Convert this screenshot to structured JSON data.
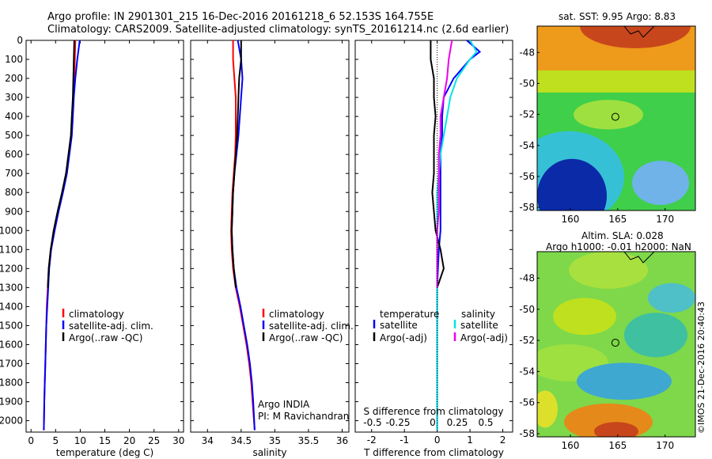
{
  "header": {
    "line1": "Argo profile: IN 2901301_215 16-Dec-2016 20161218_6 52.153S 164.755E",
    "line2": "Climatology: CARS2009. Satellite-adjusted climatology: synTS_20161214.nc (2.6d earlier)"
  },
  "chart_data": [
    {
      "type": "line",
      "xlabel": "temperature (deg C)",
      "ylabel": "",
      "xlim": [
        -1,
        31
      ],
      "ylim": [
        2060,
        0
      ],
      "xticks": [
        0,
        5,
        10,
        15,
        20,
        25,
        30
      ],
      "yticks": [
        0,
        100,
        200,
        300,
        400,
        500,
        600,
        700,
        800,
        900,
        1000,
        1100,
        1200,
        1300,
        1400,
        1500,
        1600,
        1700,
        1800,
        1900,
        2000
      ],
      "legend": [
        "climatology",
        "satellite-adj. clim.",
        "Argo(..raw -QC)"
      ],
      "series": [
        {
          "name": "climatology",
          "color": "#ff0000",
          "x": [
            9.0,
            8.9,
            8.8,
            8.6,
            8.4,
            8.2,
            7.7,
            7.2,
            6.4,
            5.5,
            4.7,
            4.0,
            3.6,
            3.4,
            3.2,
            3.1,
            3.0,
            2.9,
            2.8,
            2.7,
            2.6
          ],
          "y": [
            0,
            100,
            200,
            300,
            400,
            500,
            600,
            700,
            800,
            900,
            1000,
            1100,
            1200,
            1300,
            1400,
            1500,
            1600,
            1700,
            1800,
            1900,
            2050
          ]
        },
        {
          "name": "satellite-adj. clim.",
          "color": "#0000ff",
          "x": [
            9.9,
            9.4,
            9.0,
            8.7,
            8.5,
            8.3,
            7.8,
            7.3,
            6.5,
            5.6,
            4.8,
            4.1,
            3.7,
            3.5,
            3.3,
            3.1,
            3.0,
            2.9,
            2.8,
            2.7,
            2.6
          ],
          "y": [
            0,
            100,
            200,
            300,
            400,
            500,
            600,
            700,
            800,
            900,
            1000,
            1100,
            1200,
            1300,
            1400,
            1500,
            1600,
            1700,
            1800,
            1900,
            2050
          ]
        },
        {
          "name": "Argo(..raw -QC)",
          "color": "#000000",
          "x": [
            8.8,
            8.7,
            8.6,
            8.5,
            8.3,
            8.1,
            7.6,
            7.1,
            6.3,
            5.4,
            4.6,
            4.0,
            3.6,
            3.4
          ],
          "y": [
            0,
            100,
            200,
            300,
            400,
            500,
            600,
            700,
            800,
            900,
            1000,
            1100,
            1200,
            1300
          ]
        }
      ]
    },
    {
      "type": "line",
      "xlabel": "salinity",
      "xlim": [
        33.75,
        36.1
      ],
      "ylim": [
        2060,
        0
      ],
      "xticks": [
        34,
        34.5,
        35,
        35.5,
        36
      ],
      "legend": [
        "climatology",
        "satellite-adj. clim.",
        "Argo(..raw -QC)"
      ],
      "annotations": [
        "Argo INDIA",
        "PI: M Ravichandran"
      ],
      "series": [
        {
          "name": "climatology",
          "color": "#ff0000",
          "x": [
            34.38,
            34.38,
            34.4,
            34.42,
            34.42,
            34.42,
            34.41,
            34.39,
            34.37,
            34.36,
            34.35,
            34.36,
            34.38,
            34.42,
            34.48,
            34.53,
            34.58,
            34.62,
            34.65,
            34.67,
            34.7
          ],
          "y": [
            0,
            100,
            200,
            300,
            400,
            500,
            600,
            700,
            800,
            900,
            1000,
            1100,
            1200,
            1300,
            1400,
            1500,
            1600,
            1700,
            1800,
            1900,
            2050
          ]
        },
        {
          "name": "satellite-adj. clim.",
          "color": "#0000ff",
          "x": [
            34.45,
            34.5,
            34.52,
            34.5,
            34.48,
            34.46,
            34.43,
            34.4,
            34.38,
            34.37,
            34.36,
            34.37,
            34.39,
            34.43,
            34.49,
            34.54,
            34.59,
            34.63,
            34.66,
            34.68,
            34.7
          ],
          "y": [
            0,
            100,
            200,
            300,
            400,
            500,
            600,
            700,
            800,
            900,
            1000,
            1100,
            1200,
            1300,
            1400,
            1500,
            1600,
            1700,
            1800,
            1900,
            2050
          ]
        },
        {
          "name": "Argo(..raw -QC)",
          "color": "#000000",
          "x": [
            34.5,
            34.5,
            34.47,
            34.46,
            34.45,
            34.44,
            34.42,
            34.4,
            34.38,
            34.37,
            34.36,
            34.37,
            34.39,
            34.42
          ],
          "y": [
            0,
            100,
            200,
            300,
            400,
            500,
            600,
            700,
            800,
            900,
            1000,
            1100,
            1200,
            1300
          ]
        }
      ]
    },
    {
      "type": "line",
      "xlabel": "T difference from climatology",
      "xlabel_top": "S difference from climatology",
      "xlim": [
        -2.5,
        2.3
      ],
      "ylim": [
        2060,
        0
      ],
      "xticks": [
        -2,
        -1,
        0,
        1,
        2
      ],
      "xticks_s": [
        -0.5,
        -0.25,
        0,
        0.25,
        0.5
      ],
      "legend": [
        "temperature",
        "satellite",
        "Argo(-adj)",
        "salinity",
        "satellite",
        "Argo(-adj)"
      ],
      "series": [
        {
          "name": "satellite",
          "group": "temperature",
          "color": "#0000ff",
          "x": [
            0.9,
            1.3,
            1.0,
            0.5,
            0.2,
            0.15,
            0.15,
            0.1,
            0.1,
            0.1,
            0.1,
            0.1,
            0.05,
            0.0,
            0.0,
            0.0,
            0.0,
            0.0,
            0.0,
            0.0
          ],
          "y": [
            0,
            60,
            100,
            200,
            300,
            400,
            500,
            600,
            700,
            800,
            900,
            1000,
            1100,
            1300,
            1400,
            1500,
            1600,
            1700,
            1800,
            2050
          ]
        },
        {
          "name": "Argo(-adj)",
          "group": "temperature",
          "color": "#000000",
          "x": [
            -0.2,
            -0.2,
            -0.1,
            -0.1,
            -0.05,
            -0.1,
            -0.1,
            -0.1,
            -0.15,
            -0.1,
            -0.05,
            0.1,
            0.2,
            0.0
          ],
          "y": [
            0,
            100,
            200,
            300,
            400,
            500,
            600,
            700,
            800,
            900,
            1000,
            1100,
            1200,
            1300
          ]
        },
        {
          "name": "satellite",
          "group": "salinity",
          "color": "#00e5e5",
          "x": [
            1.0,
            1.2,
            1.0,
            0.6,
            0.4,
            0.3,
            0.2,
            0.1,
            0.05,
            0.0,
            0.0,
            0.0,
            0.0,
            0.0,
            0.0,
            0.0,
            0.0,
            0.0,
            0.0,
            0.0
          ],
          "y": [
            0,
            60,
            100,
            200,
            300,
            400,
            500,
            600,
            700,
            800,
            900,
            1000,
            1100,
            1300,
            1400,
            1500,
            1600,
            1700,
            1800,
            2050
          ]
        },
        {
          "name": "Argo(-adj)",
          "group": "salinity",
          "color": "#ee00ee",
          "x": [
            0.45,
            0.35,
            0.3,
            0.2,
            0.1,
            0.1,
            0.05,
            0.05,
            0.05,
            0.05,
            0.0,
            0.0,
            0.0,
            0.0
          ],
          "y": [
            0,
            100,
            200,
            300,
            400,
            500,
            600,
            700,
            800,
            900,
            1000,
            1100,
            1200,
            1300
          ]
        }
      ]
    },
    {
      "type": "heatmap",
      "title": "sat. SST: 9.95 Argo: 8.83",
      "xticks": [
        160,
        165,
        170
      ],
      "yticks": [
        -48,
        -50,
        -52,
        -54,
        -56,
        -58
      ]
    },
    {
      "type": "heatmap",
      "title_line1": "Altim. SLA: 0.028",
      "title_line2": "Argo h1000: -0.01 h2000: NaN",
      "xticks": [
        160,
        165,
        170
      ],
      "yticks": [
        -48,
        -50,
        -52,
        -54,
        -56,
        -58
      ]
    }
  ],
  "credit": "©IMOS 21-Dec-2016 20:40:43",
  "colors": {
    "climatology": "#ff0000",
    "satellite": "#0000ff",
    "argo": "#000000",
    "sal_satellite": "#00e5e5",
    "sal_argo": "#ee00ee"
  }
}
